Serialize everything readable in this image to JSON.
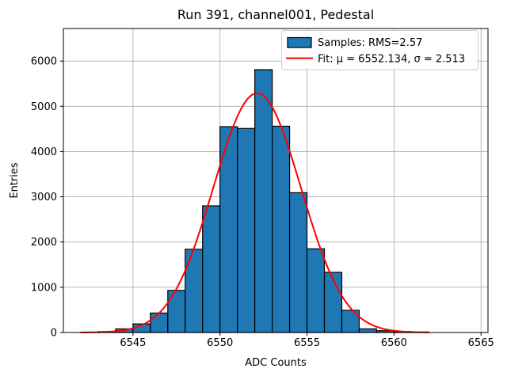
{
  "figure": {
    "background": "#ffffff"
  },
  "chart_data": {
    "type": "bar",
    "subtype": "histogram-with-gaussian-fit",
    "title": "Run 391, channel001, Pedestal",
    "xlabel": "ADC Counts",
    "ylabel": "Entries",
    "xlim": [
      6541,
      6565.4
    ],
    "ylim": [
      0,
      6720
    ],
    "grid": true,
    "grid_color": "#b0b0b0",
    "legend_position": "upper right",
    "xticks": [
      6545,
      6550,
      6555,
      6560,
      6565
    ],
    "yticks": [
      0,
      1000,
      2000,
      3000,
      4000,
      5000,
      6000
    ],
    "bins": {
      "start": 6543,
      "width": 1,
      "edges": [
        6543,
        6544,
        6545,
        6546,
        6547,
        6548,
        6549,
        6550,
        6551,
        6552,
        6553,
        6554,
        6555,
        6556,
        6557,
        6558,
        6559,
        6560,
        6561,
        6562
      ],
      "counts": [
        20,
        80,
        190,
        430,
        930,
        1840,
        2800,
        4550,
        4510,
        5810,
        4560,
        3090,
        1850,
        1330,
        490,
        80,
        40,
        20,
        10
      ]
    },
    "series": [
      {
        "name": "Samples: RMS=2.57",
        "kind": "histogram",
        "fill_color": "#1f77b4",
        "edge_color": "#000000"
      },
      {
        "name": "Fit: μ = 6552.134, σ = 2.513",
        "kind": "gaussian-fit",
        "color": "#ff0000",
        "mu": 6552.134,
        "sigma": 2.513,
        "amplitude": 5290,
        "x_start": 6542,
        "x_end": 6562
      }
    ]
  }
}
